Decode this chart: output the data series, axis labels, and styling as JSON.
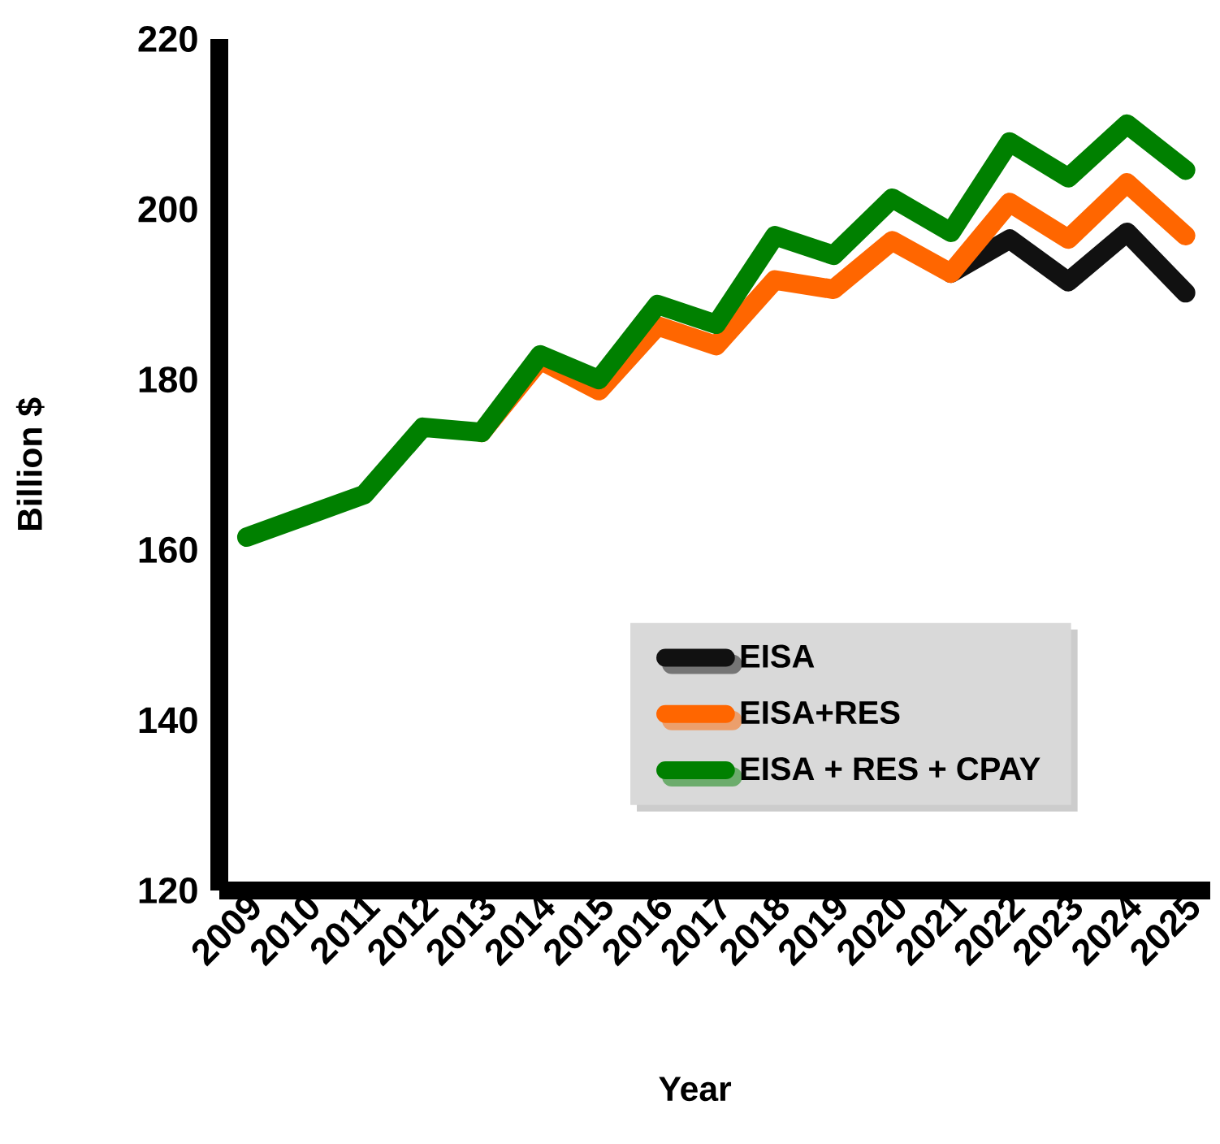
{
  "chart_data": {
    "type": "line",
    "xlabel": "Year",
    "ylabel": "Billion $",
    "categories": [
      "2009",
      "2010",
      "2011",
      "2012",
      "2013",
      "2014",
      "2015",
      "2016",
      "2017",
      "2018",
      "2019",
      "2020",
      "2021",
      "2022",
      "2023",
      "2024",
      "2025"
    ],
    "series": [
      {
        "name": "EISA",
        "color": "#111111",
        "values": [
          null,
          null,
          null,
          null,
          null,
          null,
          null,
          null,
          null,
          null,
          null,
          null,
          192.5,
          196.5,
          191.5,
          197.3,
          190.2
        ]
      },
      {
        "name": "EISA+RES",
        "color": "#ff6600",
        "values": [
          null,
          null,
          null,
          null,
          173.8,
          182.3,
          178.7,
          186.3,
          184.0,
          191.7,
          190.6,
          196.3,
          192.5,
          200.8,
          196.5,
          203.1,
          196.9
        ]
      },
      {
        "name": "EISA + RES + CPAY",
        "color": "#008000",
        "values": [
          161.5,
          164.0,
          166.5,
          174.4,
          173.8,
          182.9,
          180.0,
          188.8,
          186.5,
          196.9,
          194.6,
          201.3,
          197.3,
          207.9,
          203.7,
          210.0,
          204.6
        ]
      }
    ],
    "ylim": [
      120,
      220
    ],
    "yticks": [
      120,
      140,
      160,
      180,
      200,
      220
    ],
    "grid": false,
    "legend": "bottom right",
    "line_style": "solid",
    "marker": "none"
  }
}
